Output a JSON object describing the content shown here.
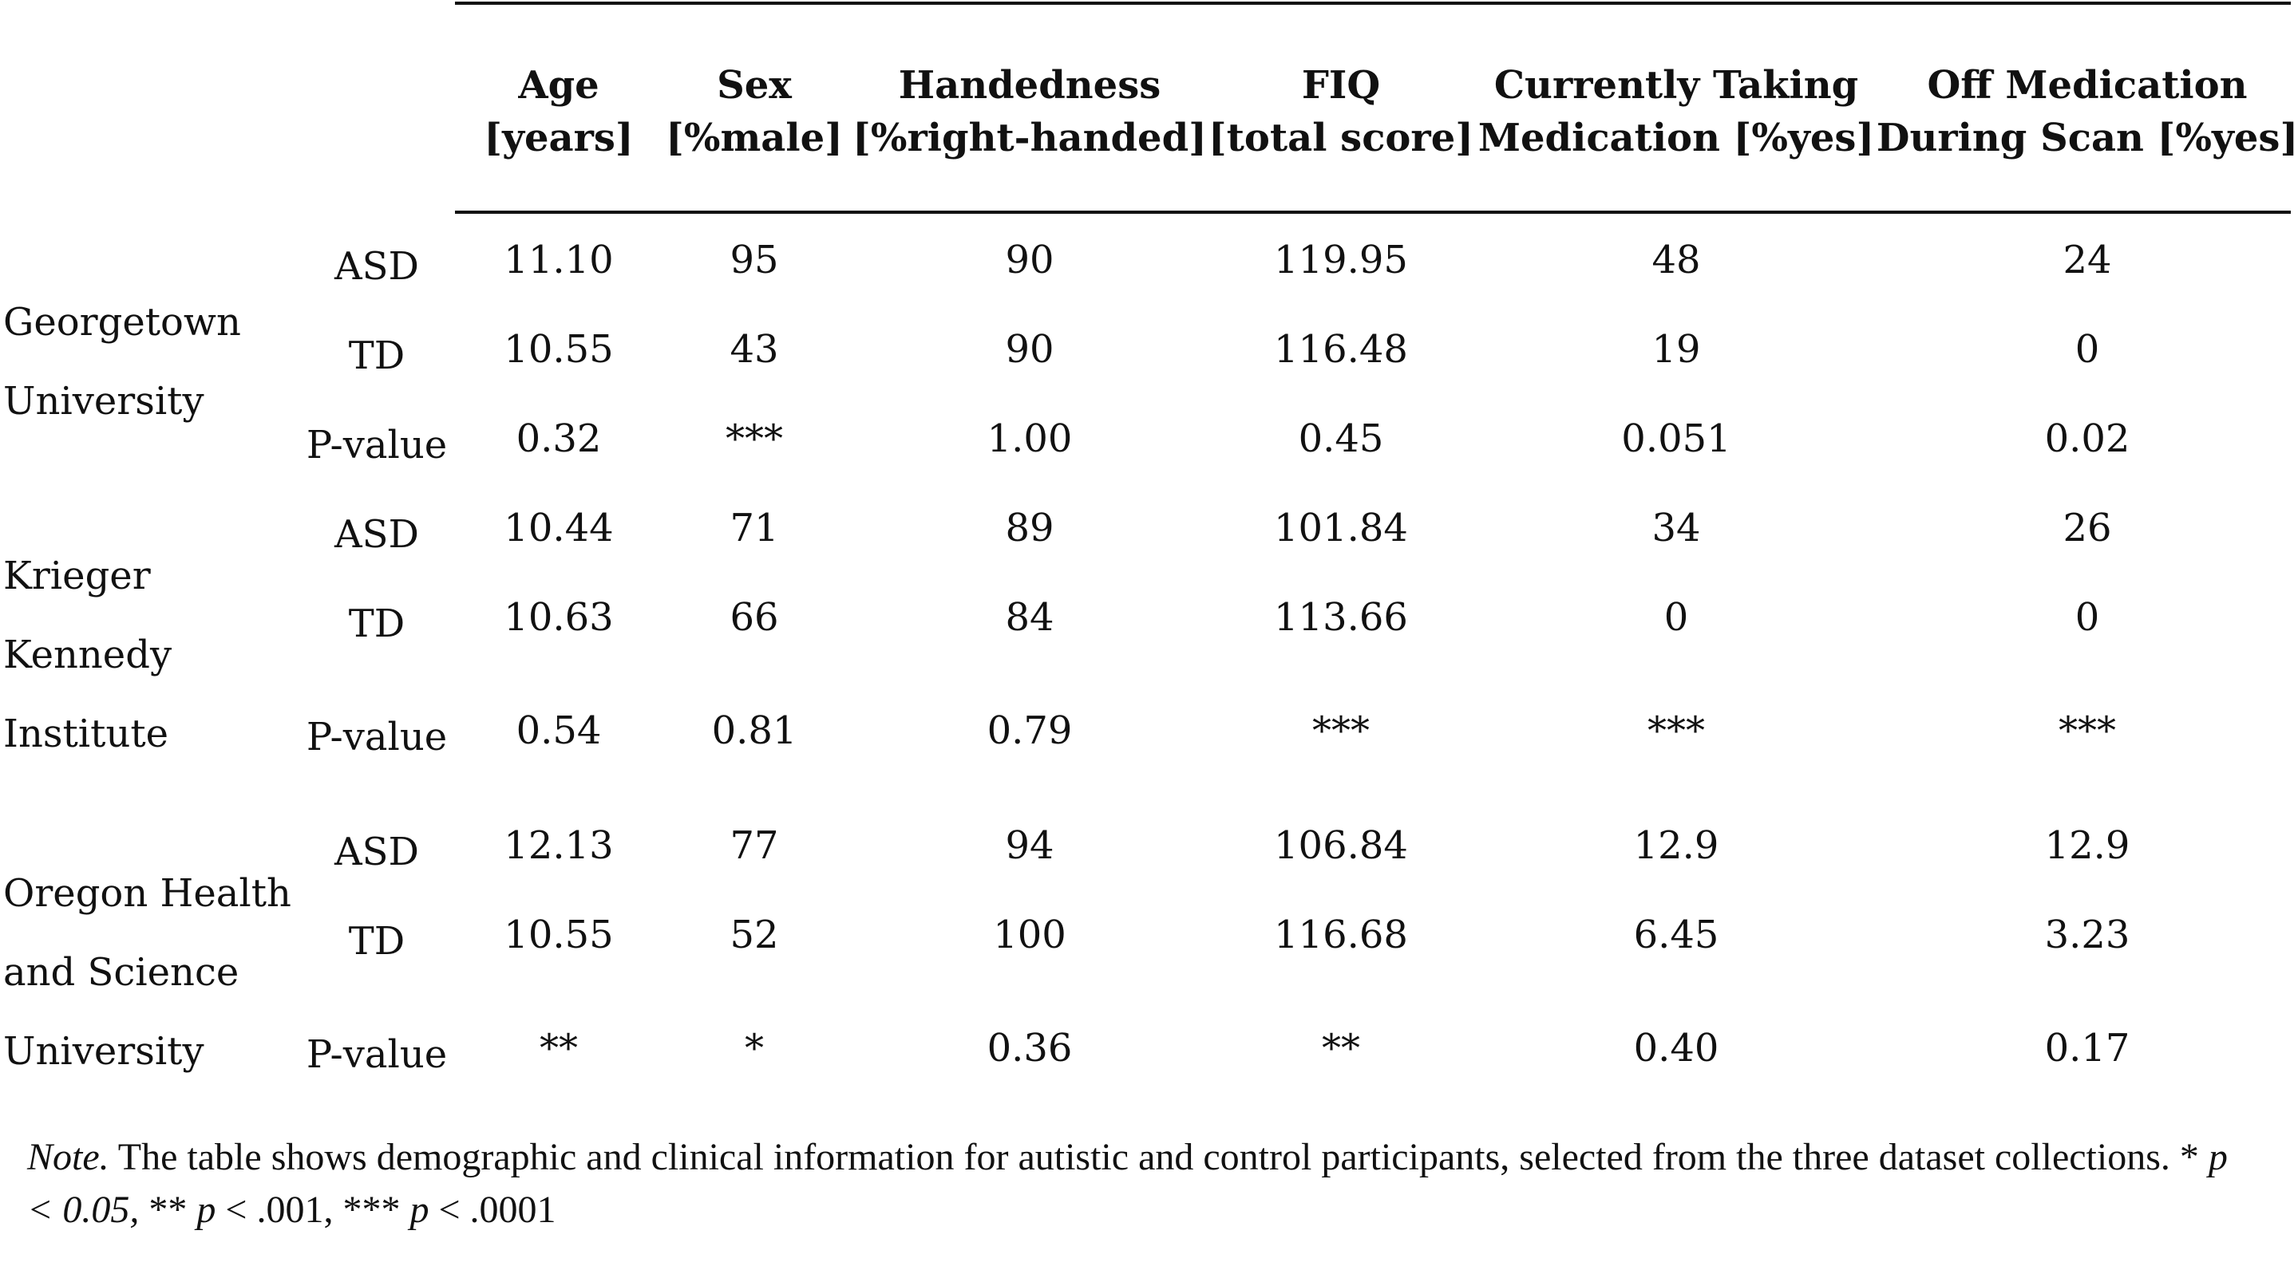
{
  "columns": [
    {
      "line1": "Age",
      "line2": "[years]"
    },
    {
      "line1": "Sex",
      "line2": "[%male]"
    },
    {
      "line1": "Handedness",
      "line2": "[%right-handed]"
    },
    {
      "line1": "FIQ",
      "line2": "[total score]"
    },
    {
      "line1": "Currently Taking",
      "line2": "Medication [%yes]"
    },
    {
      "line1": "Off Medication",
      "line2": "During Scan [%yes]"
    }
  ],
  "groups": [
    {
      "institution": [
        "Georgetown",
        "University"
      ],
      "rows": [
        {
          "label": "ASD",
          "values": [
            "11.10",
            "95",
            "90",
            "119.95",
            "48",
            "24"
          ]
        },
        {
          "label": "TD",
          "values": [
            "10.55",
            "43",
            "90",
            "116.48",
            "19",
            "0"
          ]
        },
        {
          "label": "P-value",
          "values": [
            "0.32",
            "***",
            "1.00",
            "0.45",
            "0.051",
            "0.02"
          ]
        }
      ]
    },
    {
      "institution": [
        "Krieger",
        "Kennedy",
        "Institute"
      ],
      "rows": [
        {
          "label": "ASD",
          "values": [
            "10.44",
            "71",
            "89",
            "101.84",
            "34",
            "26"
          ]
        },
        {
          "label": "TD",
          "values": [
            "10.63",
            "66",
            "84",
            "113.66",
            "0",
            "0"
          ]
        },
        {
          "label": "P-value",
          "values": [
            "0.54",
            "0.81",
            "0.79",
            "***",
            "***",
            "***"
          ]
        }
      ]
    },
    {
      "institution": [
        "Oregon Health",
        "and Science",
        "University"
      ],
      "rows": [
        {
          "label": "ASD",
          "values": [
            "12.13",
            "77",
            "94",
            "106.84",
            "12.9",
            "12.9"
          ]
        },
        {
          "label": "TD",
          "values": [
            "10.55",
            "52",
            "100",
            "116.68",
            "6.45",
            "3.23"
          ]
        },
        {
          "label": "P-value",
          "values": [
            "**",
            "*",
            "0.36",
            "**",
            "0.40",
            "0.17"
          ]
        }
      ]
    }
  ],
  "note": {
    "label": "Note.",
    "text1": " The table shows demographic and clinical information for autistic and control participants, selected from the three dataset collections.  ",
    "s1_stars": "* ",
    "s1_p": "p < 0.05,",
    "s2_stars": " ** ",
    "s2_p": "p",
    "s2_val": " < .001, ",
    "s3_stars": "*** ",
    "s3_p": "p",
    "s3_val": " < .0001"
  }
}
